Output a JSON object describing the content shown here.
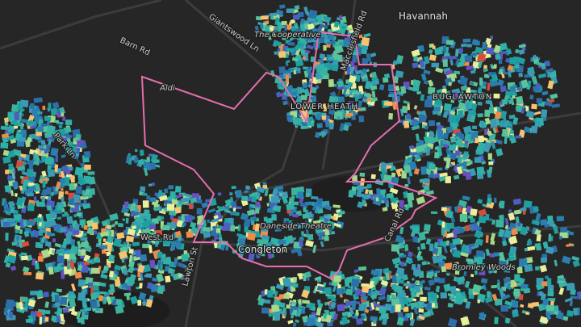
{
  "map": {
    "labels": [
      {
        "text": "Havannah"
      },
      {
        "text": "The Cooperative"
      },
      {
        "text": "Giantswood Ln"
      },
      {
        "text": "Barn Rd"
      },
      {
        "text": "Aldi"
      },
      {
        "text": "BUGLAWTON"
      },
      {
        "text": "LOWER HEATH"
      },
      {
        "text": "Macclesfield Rd"
      },
      {
        "text": "Park Ln"
      },
      {
        "text": "West Rd"
      },
      {
        "text": "Congleton"
      },
      {
        "text": "Daneside Theatre"
      },
      {
        "text": "Canal Rd"
      },
      {
        "text": "Lawton St"
      },
      {
        "text": "Bromley Woods"
      }
    ]
  }
}
